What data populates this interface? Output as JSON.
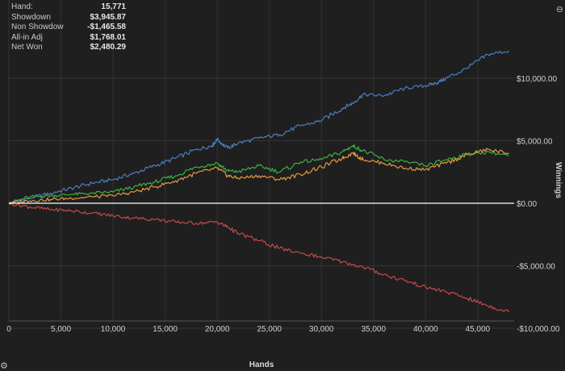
{
  "stats": [
    {
      "label": "Hand:",
      "value": "15,771"
    },
    {
      "label": "Showdown",
      "value": "$3,945.87"
    },
    {
      "label": "Non Showdow",
      "value": "-$1,465.58"
    },
    {
      "label": "All-in Adj",
      "value": "$1,768.01"
    },
    {
      "label": "Net Won",
      "value": "$2,480.29"
    }
  ],
  "y_title_partial": "Winnings",
  "icons": {
    "top_right": "zoom-icon",
    "bottom_left": "gear-icon"
  },
  "chart_data": {
    "type": "line",
    "xlabel": "Hands",
    "ylabel": "Winnings",
    "xlim": [
      0,
      48500
    ],
    "ylim": [
      -10500,
      12500
    ],
    "x_ticks": [
      0,
      5000,
      10000,
      15000,
      20000,
      25000,
      30000,
      35000,
      40000,
      45000
    ],
    "x_tick_labels": [
      "0",
      "5,000",
      "10,000",
      "15,000",
      "20,000",
      "25,000",
      "30,000",
      "35,000",
      "40,000",
      "45,000"
    ],
    "y_ticks": [
      10000,
      5000,
      0,
      -5000,
      -10000
    ],
    "y_tick_labels": [
      "$10,000.00",
      "$5,000.00",
      "$0.00",
      "-$5,000.00",
      "-$10,000.00"
    ],
    "grid": true,
    "series": [
      {
        "color": "#4a7fc0",
        "x": [
          0,
          2000,
          4000,
          6000,
          8000,
          10000,
          12000,
          14000,
          16000,
          18000,
          19500,
          20000,
          21000,
          22000,
          24000,
          26000,
          28000,
          30000,
          32000,
          33000,
          34000,
          36000,
          38000,
          40000,
          41000,
          42000,
          44000,
          46000,
          48000
        ],
        "y": [
          0,
          400,
          800,
          1200,
          1600,
          1900,
          2400,
          3000,
          3600,
          4300,
          4600,
          5100,
          4400,
          4800,
          5200,
          5500,
          6200,
          6600,
          7600,
          8000,
          8700,
          8600,
          9200,
          9400,
          9600,
          10000,
          10800,
          11900,
          12200
        ]
      },
      {
        "color": "#3cb043",
        "x": [
          0,
          2000,
          4000,
          6000,
          8000,
          10000,
          12000,
          14000,
          16000,
          18000,
          20000,
          21000,
          22000,
          24000,
          26000,
          28000,
          30000,
          32000,
          33000,
          34000,
          36000,
          38000,
          40000,
          42000,
          44000,
          46000,
          48000
        ],
        "y": [
          0,
          500,
          600,
          700,
          800,
          900,
          1300,
          1700,
          2200,
          2900,
          3200,
          2600,
          2500,
          3000,
          2500,
          3300,
          3500,
          4100,
          4600,
          4200,
          3500,
          3300,
          3000,
          3500,
          3900,
          4100,
          3800
        ]
      },
      {
        "color": "#e39a3c",
        "x": [
          0,
          2000,
          4000,
          6000,
          8000,
          10000,
          12000,
          14000,
          16000,
          18000,
          20000,
          21000,
          22000,
          24000,
          26000,
          28000,
          30000,
          32000,
          33000,
          34000,
          36000,
          38000,
          40000,
          42000,
          44000,
          46000,
          48000
        ],
        "y": [
          0,
          200,
          300,
          400,
          500,
          600,
          900,
          1300,
          1800,
          2400,
          2800,
          2200,
          2000,
          2200,
          1900,
          2300,
          2900,
          3600,
          4000,
          3500,
          3200,
          2800,
          2700,
          3200,
          3900,
          4300,
          4000
        ]
      },
      {
        "color": "#c44a4a",
        "x": [
          0,
          2000,
          4000,
          6000,
          8000,
          10000,
          12000,
          14000,
          16000,
          18000,
          20000,
          21000,
          22000,
          24000,
          26000,
          28000,
          30000,
          32000,
          34000,
          36000,
          38000,
          40000,
          42000,
          44000,
          46000,
          48000
        ],
        "y": [
          0,
          -300,
          -500,
          -600,
          -800,
          -1000,
          -1200,
          -1300,
          -1500,
          -1600,
          -1500,
          -1900,
          -2400,
          -3000,
          -3600,
          -4000,
          -4300,
          -4700,
          -5100,
          -5700,
          -6200,
          -6700,
          -7100,
          -7600,
          -8200,
          -8700
        ]
      }
    ],
    "zero_line_color": "#ffffff"
  }
}
